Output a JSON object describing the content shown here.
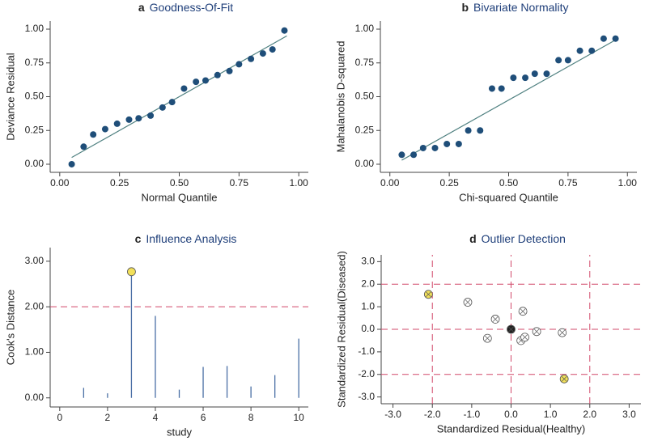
{
  "chart_data": [
    {
      "type": "scatter",
      "label": "a",
      "title": "Goodness-Of-Fit",
      "xlabel": "Normal Quantile",
      "ylabel": "Deviance Residual",
      "x": [
        0.05,
        0.1,
        0.14,
        0.19,
        0.24,
        0.29,
        0.33,
        0.38,
        0.43,
        0.47,
        0.52,
        0.57,
        0.61,
        0.66,
        0.71,
        0.75,
        0.8,
        0.85,
        0.89,
        0.94
      ],
      "values": [
        0.0,
        0.13,
        0.22,
        0.26,
        0.3,
        0.33,
        0.34,
        0.36,
        0.42,
        0.46,
        0.56,
        0.61,
        0.62,
        0.66,
        0.69,
        0.74,
        0.78,
        0.82,
        0.85,
        0.99
      ],
      "color": "#1f4e79",
      "fit": {
        "x": [
          0.05,
          0.95
        ],
        "values": [
          0.05,
          0.95
        ],
        "color": "#4f8080"
      },
      "xlim": [
        -0.04,
        1.04
      ],
      "ylim": [
        -0.06,
        1.06
      ],
      "xticks": [
        {
          "value": 0,
          "label": "0.00"
        },
        {
          "value": 0.25,
          "label": "0.25"
        },
        {
          "value": 0.5,
          "label": "0.50"
        },
        {
          "value": 0.75,
          "label": "0.75"
        },
        {
          "value": 1,
          "label": "1.00"
        }
      ],
      "yticks": [
        {
          "value": 0,
          "label": "0.00"
        },
        {
          "value": 0.25,
          "label": "0.25"
        },
        {
          "value": 0.5,
          "label": "0.50"
        },
        {
          "value": 0.75,
          "label": "0.75"
        },
        {
          "value": 1,
          "label": "1.00"
        }
      ]
    },
    {
      "type": "scatter",
      "label": "b",
      "title": "Bivariate Normality",
      "xlabel": "Chi-squared Quantile",
      "ylabel": "Mahalanobis D-squared",
      "x": [
        0.05,
        0.1,
        0.14,
        0.19,
        0.24,
        0.29,
        0.33,
        0.38,
        0.43,
        0.47,
        0.52,
        0.57,
        0.61,
        0.66,
        0.71,
        0.75,
        0.8,
        0.85,
        0.9,
        0.95
      ],
      "values": [
        0.07,
        0.07,
        0.12,
        0.12,
        0.15,
        0.15,
        0.25,
        0.25,
        0.56,
        0.56,
        0.64,
        0.64,
        0.67,
        0.67,
        0.77,
        0.77,
        0.84,
        0.84,
        0.93,
        0.93
      ],
      "color": "#1f4e79",
      "fit": {
        "x": [
          0.05,
          0.95
        ],
        "values": [
          0.03,
          0.92
        ],
        "color": "#4f8080"
      },
      "xlim": [
        -0.04,
        1.04
      ],
      "ylim": [
        -0.06,
        1.06
      ],
      "xticks": [
        {
          "value": 0,
          "label": "0.00"
        },
        {
          "value": 0.25,
          "label": "0.25"
        },
        {
          "value": 0.5,
          "label": "0.50"
        },
        {
          "value": 0.75,
          "label": "0.75"
        },
        {
          "value": 1,
          "label": "1.00"
        }
      ],
      "yticks": [
        {
          "value": 0,
          "label": "0.00"
        },
        {
          "value": 0.25,
          "label": "0.25"
        },
        {
          "value": 0.5,
          "label": "0.50"
        },
        {
          "value": 0.75,
          "label": "0.75"
        },
        {
          "value": 1,
          "label": "1.00"
        }
      ]
    },
    {
      "type": "stem",
      "label": "c",
      "title": "Influence Analysis",
      "xlabel": "study",
      "ylabel": "Cook's Distance",
      "x": [
        1,
        2,
        3,
        4,
        5,
        6,
        7,
        8,
        9,
        10
      ],
      "values": [
        0.22,
        0.1,
        2.77,
        1.8,
        0.18,
        0.68,
        0.7,
        0.25,
        0.5,
        1.3
      ],
      "color": "#4a6fa5",
      "highlight": [
        3
      ],
      "highlight_color": "#f2e05a",
      "hlines": [
        2
      ],
      "ref_color": "#d2486a",
      "xlim": [
        -0.4,
        10.4
      ],
      "ylim": [
        -0.2,
        3.3
      ],
      "xticks": [
        0,
        2,
        4,
        6,
        8,
        10
      ],
      "yticks": [
        {
          "value": 0,
          "label": "0.00"
        },
        {
          "value": 1,
          "label": "1.00"
        },
        {
          "value": 2,
          "label": "2.00"
        },
        {
          "value": 3,
          "label": "3.00"
        }
      ]
    },
    {
      "type": "scatter",
      "label": "d",
      "title": "Outlier Detection",
      "xlabel": "Standardized Residual(Healthy)",
      "ylabel": "Standardized Residual(Diseased)",
      "x": [
        -2.1,
        -1.1,
        -0.4,
        -0.6,
        0.0,
        0.3,
        0.25,
        0.35,
        0.65,
        1.3,
        1.35
      ],
      "values": [
        1.55,
        1.2,
        0.45,
        -0.4,
        0.0,
        0.8,
        -0.5,
        -0.35,
        -0.1,
        -0.15,
        -2.2
      ],
      "colors": [
        "#f2e05a",
        "#ffffff",
        "#ffffff",
        "#ffffff",
        "#222222",
        "#ffffff",
        "#ffffff",
        "#ffffff",
        "#ffffff",
        "#ffffff",
        "#f2e05a"
      ],
      "vlines": [
        -2,
        0,
        2
      ],
      "hlines": [
        -2,
        0,
        2
      ],
      "ref_color": "#d2486a",
      "xlim": [
        -3.3,
        3.3
      ],
      "ylim": [
        -3.3,
        3.3
      ],
      "xticks": [
        {
          "value": -3,
          "label": "-3.0"
        },
        {
          "value": -2,
          "label": "-2.0"
        },
        {
          "value": -1,
          "label": "-1.0"
        },
        {
          "value": 0,
          "label": "0.0"
        },
        {
          "value": 1,
          "label": "1.0"
        },
        {
          "value": 2,
          "label": "2.0"
        },
        {
          "value": 3,
          "label": "3.0"
        }
      ],
      "yticks": [
        {
          "value": -3,
          "label": "-3.0"
        },
        {
          "value": -2,
          "label": "-2.0"
        },
        {
          "value": -1,
          "label": "-1.0"
        },
        {
          "value": 0,
          "label": "0.0"
        },
        {
          "value": 1,
          "label": "1.0"
        },
        {
          "value": 2,
          "label": "2.0"
        },
        {
          "value": 3,
          "label": "3.0"
        }
      ]
    }
  ]
}
